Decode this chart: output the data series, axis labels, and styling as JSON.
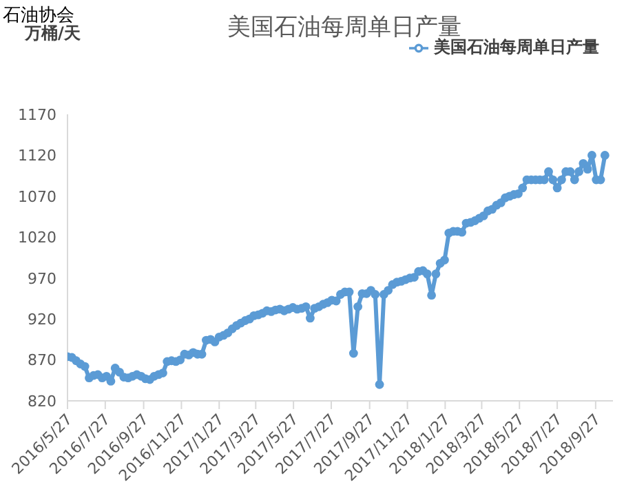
{
  "chart_data": {
    "type": "line",
    "title": "美国石油每周单日产量",
    "ylabel": "万桶/天",
    "annotations": [
      "石油协会"
    ],
    "x": [
      "2016-05-27",
      "2016-06-03",
      "2016-06-10",
      "2016-06-17",
      "2016-06-24",
      "2016-07-01",
      "2016-07-08",
      "2016-07-15",
      "2016-07-22",
      "2016-07-29",
      "2016-08-05",
      "2016-08-12",
      "2016-08-19",
      "2016-08-26",
      "2016-09-02",
      "2016-09-09",
      "2016-09-16",
      "2016-09-23",
      "2016-09-30",
      "2016-10-07",
      "2016-10-14",
      "2016-10-21",
      "2016-10-28",
      "2016-11-04",
      "2016-11-11",
      "2016-11-18",
      "2016-11-25",
      "2016-12-02",
      "2016-12-09",
      "2016-12-16",
      "2016-12-23",
      "2016-12-30",
      "2017-01-06",
      "2017-01-13",
      "2017-01-20",
      "2017-01-27",
      "2017-02-03",
      "2017-02-10",
      "2017-02-17",
      "2017-02-24",
      "2017-03-03",
      "2017-03-10",
      "2017-03-17",
      "2017-03-24",
      "2017-03-31",
      "2017-04-07",
      "2017-04-14",
      "2017-04-21",
      "2017-04-28",
      "2017-05-05",
      "2017-05-12",
      "2017-05-19",
      "2017-05-26",
      "2017-06-02",
      "2017-06-09",
      "2017-06-16",
      "2017-06-23",
      "2017-06-30",
      "2017-07-07",
      "2017-07-14",
      "2017-07-21",
      "2017-07-28",
      "2017-08-04",
      "2017-08-11",
      "2017-08-18",
      "2017-08-25",
      "2017-09-01",
      "2017-09-08",
      "2017-09-15",
      "2017-09-22",
      "2017-09-29",
      "2017-10-06",
      "2017-10-13",
      "2017-10-20",
      "2017-10-27",
      "2017-11-03",
      "2017-11-10",
      "2017-11-17",
      "2017-11-24",
      "2017-12-01",
      "2017-12-08",
      "2017-12-15",
      "2017-12-22",
      "2017-12-29",
      "2018-01-05",
      "2018-01-12",
      "2018-01-19",
      "2018-01-26",
      "2018-02-02",
      "2018-02-09",
      "2018-02-16",
      "2018-02-23",
      "2018-03-02",
      "2018-03-09",
      "2018-03-16",
      "2018-03-23",
      "2018-03-30",
      "2018-04-06",
      "2018-04-13",
      "2018-04-20",
      "2018-04-27",
      "2018-05-04",
      "2018-05-11",
      "2018-05-18",
      "2018-05-25",
      "2018-06-01",
      "2018-06-08",
      "2018-06-15",
      "2018-06-22",
      "2018-06-29",
      "2018-07-06",
      "2018-07-13",
      "2018-07-20",
      "2018-07-27",
      "2018-08-03",
      "2018-08-10",
      "2018-08-17",
      "2018-08-24",
      "2018-08-31",
      "2018-09-07",
      "2018-09-14",
      "2018-09-21",
      "2018-09-28",
      "2018-10-05",
      "2018-10-12"
    ],
    "series": [
      {
        "name": "美国石油每周单日产量",
        "color": "#5b9bd5",
        "values": [
          874,
          873,
          869,
          865,
          862,
          848,
          851,
          852,
          848,
          850,
          844,
          860,
          855,
          849,
          848,
          850,
          852,
          850,
          847,
          846,
          850,
          852,
          854,
          868,
          869,
          868,
          870,
          877,
          876,
          879,
          877,
          877,
          894,
          895,
          892,
          898,
          900,
          903,
          908,
          912,
          915,
          918,
          920,
          924,
          925,
          927,
          930,
          929,
          931,
          932,
          930,
          932,
          934,
          932,
          933,
          935,
          921,
          933,
          935,
          938,
          940,
          943,
          942,
          950,
          953,
          953,
          878,
          935,
          951,
          951,
          955,
          950,
          840,
          950,
          955,
          962,
          965,
          966,
          968,
          970,
          971,
          978,
          979,
          975,
          949,
          975,
          988,
          992,
          1025,
          1027,
          1027,
          1026,
          1037,
          1038,
          1040,
          1043,
          1046,
          1052,
          1054,
          1059,
          1062,
          1068,
          1070,
          1072,
          1073,
          1080,
          1090,
          1090,
          1090,
          1090,
          1090,
          1100,
          1090,
          1080,
          1090,
          1100,
          1100,
          1090,
          1100,
          1110,
          1103,
          1120,
          1090,
          1090,
          1120
        ]
      }
    ],
    "xlim": [
      "2016-05-27",
      "2018-10-25"
    ],
    "xticks": [
      {
        "value": "2016-05-27",
        "label": "2016/5/27"
      },
      {
        "value": "2016-07-27",
        "label": "2016/7/27"
      },
      {
        "value": "2016-09-27",
        "label": "2016/9/27"
      },
      {
        "value": "2016-11-27",
        "label": "2016/11/27"
      },
      {
        "value": "2017-01-27",
        "label": "2017/1/27"
      },
      {
        "value": "2017-03-27",
        "label": "2017/3/27"
      },
      {
        "value": "2017-05-27",
        "label": "2017/5/27"
      },
      {
        "value": "2017-07-27",
        "label": "2017/7/27"
      },
      {
        "value": "2017-09-27",
        "label": "2017/9/27"
      },
      {
        "value": "2017-11-27",
        "label": "2017/11/27"
      },
      {
        "value": "2018-01-27",
        "label": "2018/1/27"
      },
      {
        "value": "2018-03-27",
        "label": "2018/3/27"
      },
      {
        "value": "2018-05-27",
        "label": "2018/5/27"
      },
      {
        "value": "2018-07-27",
        "label": "2018/7/27"
      },
      {
        "value": "2018-09-27",
        "label": "2018/9/27"
      }
    ],
    "ylim": [
      820,
      1170
    ],
    "yticks": [
      820,
      870,
      920,
      970,
      1020,
      1070,
      1120,
      1170
    ],
    "grid": false,
    "legend": "top right",
    "marker": "circle",
    "line_style": "solid"
  }
}
